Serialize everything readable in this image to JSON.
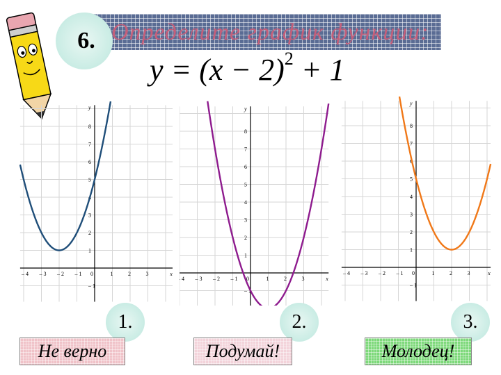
{
  "slide_number": "6.",
  "title": "Определите график функции:",
  "formula": {
    "left": "y = (x − 2)",
    "exponent": "2",
    "right": " + 1"
  },
  "answers": [
    {
      "number": "1.",
      "label": "Не верно",
      "color": "#f0c2c8"
    },
    {
      "number": "2.",
      "label": "Подумай!",
      "color": "#f3d3da"
    },
    {
      "number": "3.",
      "label": "Молодец!",
      "color": "#7dd97a"
    }
  ],
  "graphs": [
    {
      "function": "y = (x + 2)^2 + 1",
      "color": "#1f4e79",
      "x_ticks": [
        "-4",
        "-3",
        "-2",
        "-1",
        "0",
        "1",
        "2",
        "3"
      ],
      "y_ticks": [
        "-1",
        "1",
        "2",
        "3",
        "4",
        "5",
        "6",
        "7",
        "8"
      ],
      "x_label": "x",
      "y_label": "y"
    },
    {
      "function": "y = (x - 1)^2 - 2",
      "color": "#8e1b8e",
      "x_ticks": [
        "-4",
        "-3",
        "-2",
        "-1",
        "0",
        "1",
        "2",
        "3"
      ],
      "y_ticks": [
        "-1",
        "1",
        "2",
        "3",
        "4",
        "5",
        "6",
        "7",
        "8"
      ],
      "x_label": "x",
      "y_label": "y"
    },
    {
      "function": "y = (x - 2)^2 + 1",
      "color": "#f07818",
      "x_ticks": [
        "-4",
        "-3",
        "-2",
        "-1",
        "0",
        "1",
        "2",
        "3"
      ],
      "y_ticks": [
        "-1",
        "1",
        "2",
        "3",
        "4",
        "5",
        "6",
        "7",
        "8"
      ],
      "x_label": "x",
      "y_label": "y"
    }
  ]
}
